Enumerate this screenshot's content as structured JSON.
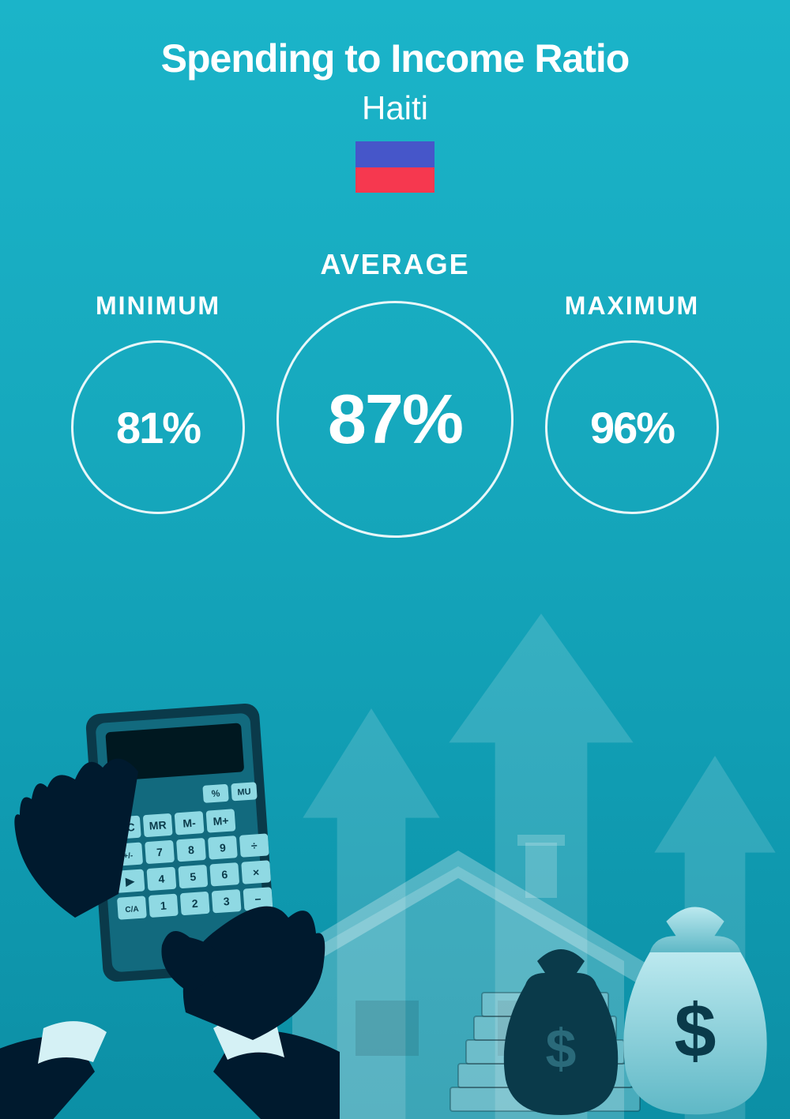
{
  "header": {
    "title": "Spending to Income Ratio",
    "title_fontsize": 50,
    "title_color": "#ffffff",
    "subtitle": "Haiti",
    "subtitle_fontsize": 42,
    "subtitle_color": "#ffffff",
    "flag": {
      "top_color": "#4656c9",
      "bottom_color": "#f6384f",
      "width": 100,
      "height": 65
    }
  },
  "stats": {
    "minimum": {
      "label": "MINIMUM",
      "value": "81%",
      "label_fontsize": 32,
      "value_fontsize": 56,
      "circle_diameter": 220
    },
    "average": {
      "label": "AVERAGE",
      "value": "87%",
      "label_fontsize": 36,
      "value_fontsize": 88,
      "circle_diameter": 300
    },
    "maximum": {
      "label": "MAXIMUM",
      "value": "96%",
      "label_fontsize": 32,
      "value_fontsize": 56,
      "circle_diameter": 220
    },
    "circle_border_color": "#ffffff",
    "label_color": "#ffffff",
    "value_color": "#ffffff"
  },
  "background": {
    "gradient_top": "#1bb4c9",
    "gradient_bottom": "#0c8fa5"
  },
  "illustration": {
    "hand_color": "#001a2e",
    "cuff_color": "#d5f1f5",
    "calculator_body": "#0a3a4a",
    "calculator_inner": "#126a7e",
    "calculator_screen": "#001820",
    "calculator_key": "#8fd9e3",
    "calculator_key_text": "#0a3a4a",
    "arrow_color": "rgba(255,255,255,0.15)",
    "house_color": "rgba(255,255,255,0.2)",
    "moneybag_dark": "#0a3a4a",
    "moneybag_light": "#7fd4e0",
    "dollar_color": "#0a3a4a",
    "stack_color": "rgba(255,255,255,0.25)",
    "calc_keys_row4": [
      "MC",
      "MR",
      "M-",
      "M+"
    ],
    "calc_keys_row5": [
      "+/-",
      "7",
      "8",
      "9",
      "÷"
    ],
    "calc_keys_row6": [
      "▶",
      "4",
      "5",
      "6",
      "×"
    ],
    "calc_keys_row7": [
      "C/A",
      "1",
      "2",
      "3",
      "−"
    ],
    "calc_keys_top": [
      "%",
      "MU"
    ]
  }
}
